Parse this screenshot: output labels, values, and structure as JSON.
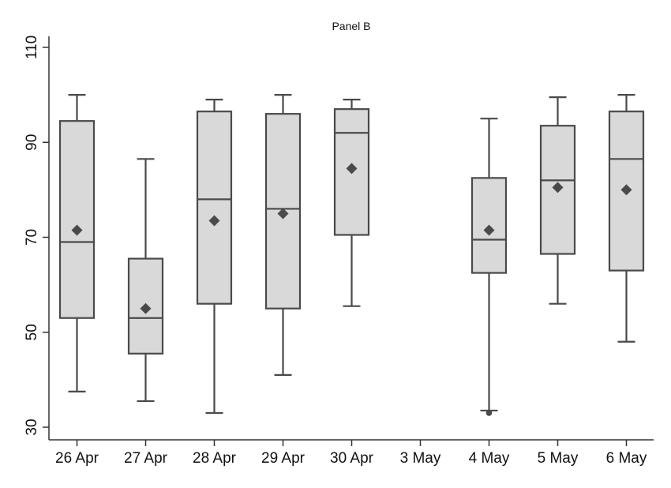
{
  "chart_data": {
    "type": "box",
    "title": "Panel B",
    "xlabel": "",
    "ylabel": "",
    "ylim": [
      30,
      110
    ],
    "yticks": [
      30,
      50,
      70,
      90,
      110
    ],
    "grid": false,
    "legend": "none",
    "categories": [
      "26 Apr",
      "27 Apr",
      "28 Apr",
      "29 Apr",
      "30 Apr",
      "3 May",
      "4 May",
      "5 May",
      "6 May"
    ],
    "boxes": [
      {
        "category": "26 Apr",
        "whisker_low": 37.5,
        "q1": 53,
        "median": 69,
        "q3": 94.5,
        "whisker_high": 100,
        "mean": 71.5,
        "outliers": []
      },
      {
        "category": "27 Apr",
        "whisker_low": 35.5,
        "q1": 45.5,
        "median": 53,
        "q3": 65.5,
        "whisker_high": 86.5,
        "mean": 55,
        "outliers": []
      },
      {
        "category": "28 Apr",
        "whisker_low": 33,
        "q1": 56,
        "median": 78,
        "q3": 96.5,
        "whisker_high": 99,
        "mean": 73.5,
        "outliers": []
      },
      {
        "category": "29 Apr",
        "whisker_low": 41,
        "q1": 55,
        "median": 76,
        "q3": 96,
        "whisker_high": 100,
        "mean": 75,
        "outliers": []
      },
      {
        "category": "30 Apr",
        "whisker_low": 55.5,
        "q1": 70.5,
        "median": 92,
        "q3": 97,
        "whisker_high": 99,
        "mean": 84.5,
        "outliers": []
      },
      {
        "category": "3 May",
        "empty": true
      },
      {
        "category": "4 May",
        "whisker_low": 33.5,
        "q1": 62.5,
        "median": 69.5,
        "q3": 82.5,
        "whisker_high": 95,
        "mean": 71.5,
        "outliers": [
          33
        ]
      },
      {
        "category": "5 May",
        "whisker_low": 56,
        "q1": 66.5,
        "median": 82,
        "q3": 93.5,
        "whisker_high": 99.5,
        "mean": 80.5,
        "outliers": []
      },
      {
        "category": "6 May",
        "whisker_low": 48,
        "q1": 63,
        "median": 86.5,
        "q3": 96.5,
        "whisker_high": 100,
        "mean": 80,
        "outliers": []
      }
    ],
    "colors": {
      "box_fill": "#d9d9d9",
      "box_stroke": "#4a4a4a",
      "mean_marker": "#4a4a4a",
      "axis": "#333333"
    },
    "mean_marker_shape": "diamond",
    "outlier_marker_shape": "circle"
  }
}
